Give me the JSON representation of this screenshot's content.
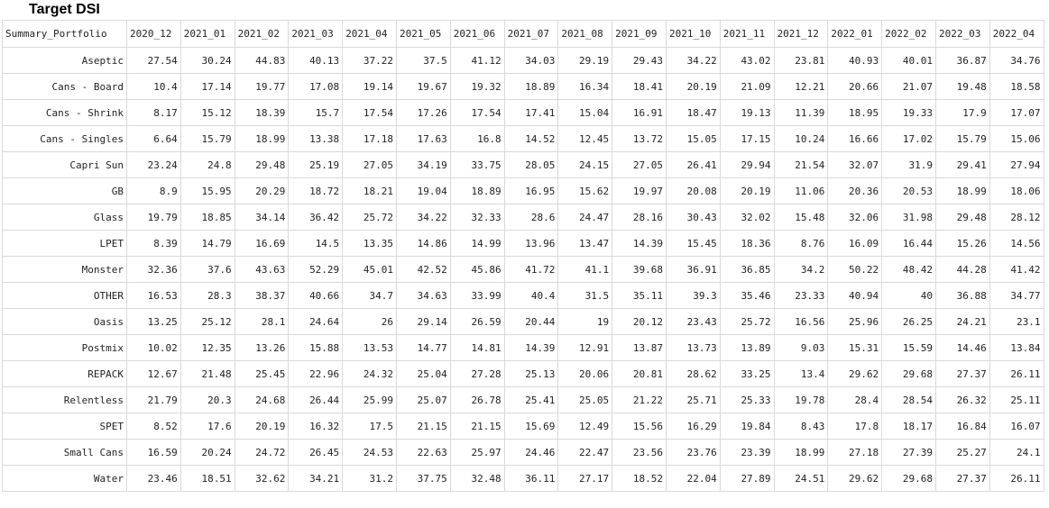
{
  "title": "Target DSI",
  "table": {
    "corner_header": "Summary_Portfolio",
    "columns": [
      "2020_12",
      "2021_01",
      "2021_02",
      "2021_03",
      "2021_04",
      "2021_05",
      "2021_06",
      "2021_07",
      "2021_08",
      "2021_09",
      "2021_10",
      "2021_11",
      "2021_12",
      "2022_01",
      "2022_02",
      "2022_03",
      "2022_04"
    ],
    "rows": [
      {
        "label": "Aseptic",
        "values": [
          "27.54",
          "30.24",
          "44.83",
          "40.13",
          "37.22",
          "37.5",
          "41.12",
          "34.03",
          "29.19",
          "29.43",
          "34.22",
          "43.02",
          "23.81",
          "40.93",
          "40.01",
          "36.87",
          "34.76"
        ]
      },
      {
        "label": "Cans - Board",
        "values": [
          "10.4",
          "17.14",
          "19.77",
          "17.08",
          "19.14",
          "19.67",
          "19.32",
          "18.89",
          "16.34",
          "18.41",
          "20.19",
          "21.09",
          "12.21",
          "20.66",
          "21.07",
          "19.48",
          "18.58"
        ]
      },
      {
        "label": "Cans - Shrink",
        "values": [
          "8.17",
          "15.12",
          "18.39",
          "15.7",
          "17.54",
          "17.26",
          "17.54",
          "17.41",
          "15.04",
          "16.91",
          "18.47",
          "19.13",
          "11.39",
          "18.95",
          "19.33",
          "17.9",
          "17.07"
        ]
      },
      {
        "label": "Cans - Singles",
        "values": [
          "6.64",
          "15.79",
          "18.99",
          "13.38",
          "17.18",
          "17.63",
          "16.8",
          "14.52",
          "12.45",
          "13.72",
          "15.05",
          "17.15",
          "10.24",
          "16.66",
          "17.02",
          "15.79",
          "15.06"
        ]
      },
      {
        "label": "Capri Sun",
        "values": [
          "23.24",
          "24.8",
          "29.48",
          "25.19",
          "27.05",
          "34.19",
          "33.75",
          "28.05",
          "24.15",
          "27.05",
          "26.41",
          "29.94",
          "21.54",
          "32.07",
          "31.9",
          "29.41",
          "27.94"
        ]
      },
      {
        "label": "GB",
        "values": [
          "8.9",
          "15.95",
          "20.29",
          "18.72",
          "18.21",
          "19.04",
          "18.89",
          "16.95",
          "15.62",
          "19.97",
          "20.08",
          "20.19",
          "11.06",
          "20.36",
          "20.53",
          "18.99",
          "18.06"
        ]
      },
      {
        "label": "Glass",
        "values": [
          "19.79",
          "18.85",
          "34.14",
          "36.42",
          "25.72",
          "34.22",
          "32.33",
          "28.6",
          "24.47",
          "28.16",
          "30.43",
          "32.02",
          "15.48",
          "32.06",
          "31.98",
          "29.48",
          "28.12"
        ]
      },
      {
        "label": "LPET",
        "values": [
          "8.39",
          "14.79",
          "16.69",
          "14.5",
          "13.35",
          "14.86",
          "14.99",
          "13.96",
          "13.47",
          "14.39",
          "15.45",
          "18.36",
          "8.76",
          "16.09",
          "16.44",
          "15.26",
          "14.56"
        ]
      },
      {
        "label": "Monster",
        "values": [
          "32.36",
          "37.6",
          "43.63",
          "52.29",
          "45.01",
          "42.52",
          "45.86",
          "41.72",
          "41.1",
          "39.68",
          "36.91",
          "36.85",
          "34.2",
          "50.22",
          "48.42",
          "44.28",
          "41.42"
        ]
      },
      {
        "label": "OTHER",
        "values": [
          "16.53",
          "28.3",
          "38.37",
          "40.66",
          "34.7",
          "34.63",
          "33.99",
          "40.4",
          "31.5",
          "35.11",
          "39.3",
          "35.46",
          "23.33",
          "40.94",
          "40",
          "36.88",
          "34.77"
        ]
      },
      {
        "label": "Oasis",
        "values": [
          "13.25",
          "25.12",
          "28.1",
          "24.64",
          "26",
          "29.14",
          "26.59",
          "20.44",
          "19",
          "20.12",
          "23.43",
          "25.72",
          "16.56",
          "25.96",
          "26.25",
          "24.21",
          "23.1"
        ]
      },
      {
        "label": "Postmix",
        "values": [
          "10.02",
          "12.35",
          "13.26",
          "15.88",
          "13.53",
          "14.77",
          "14.81",
          "14.39",
          "12.91",
          "13.87",
          "13.73",
          "13.89",
          "9.03",
          "15.31",
          "15.59",
          "14.46",
          "13.84"
        ]
      },
      {
        "label": "REPACK",
        "values": [
          "12.67",
          "21.48",
          "25.45",
          "22.96",
          "24.32",
          "25.04",
          "27.28",
          "25.13",
          "20.06",
          "20.81",
          "28.62",
          "33.25",
          "13.4",
          "29.62",
          "29.68",
          "27.37",
          "26.11"
        ]
      },
      {
        "label": "Relentless",
        "values": [
          "21.79",
          "20.3",
          "24.68",
          "26.44",
          "25.99",
          "25.07",
          "26.78",
          "25.41",
          "25.05",
          "21.22",
          "25.71",
          "25.33",
          "19.78",
          "28.4",
          "28.54",
          "26.32",
          "25.11"
        ]
      },
      {
        "label": "SPET",
        "values": [
          "8.52",
          "17.6",
          "20.19",
          "16.32",
          "17.5",
          "21.15",
          "21.15",
          "15.69",
          "12.49",
          "15.56",
          "16.29",
          "19.84",
          "8.43",
          "17.8",
          "18.17",
          "16.84",
          "16.07"
        ]
      },
      {
        "label": "Small Cans",
        "values": [
          "16.59",
          "20.24",
          "24.72",
          "26.45",
          "24.53",
          "22.63",
          "25.97",
          "24.46",
          "22.47",
          "23.56",
          "23.76",
          "23.39",
          "18.99",
          "27.18",
          "27.39",
          "25.27",
          "24.1"
        ]
      },
      {
        "label": "Water",
        "values": [
          "23.46",
          "18.51",
          "32.62",
          "34.21",
          "31.2",
          "37.75",
          "32.48",
          "36.11",
          "27.17",
          "18.52",
          "22.04",
          "27.89",
          "24.51",
          "29.62",
          "29.68",
          "27.37",
          "26.11"
        ]
      }
    ]
  }
}
